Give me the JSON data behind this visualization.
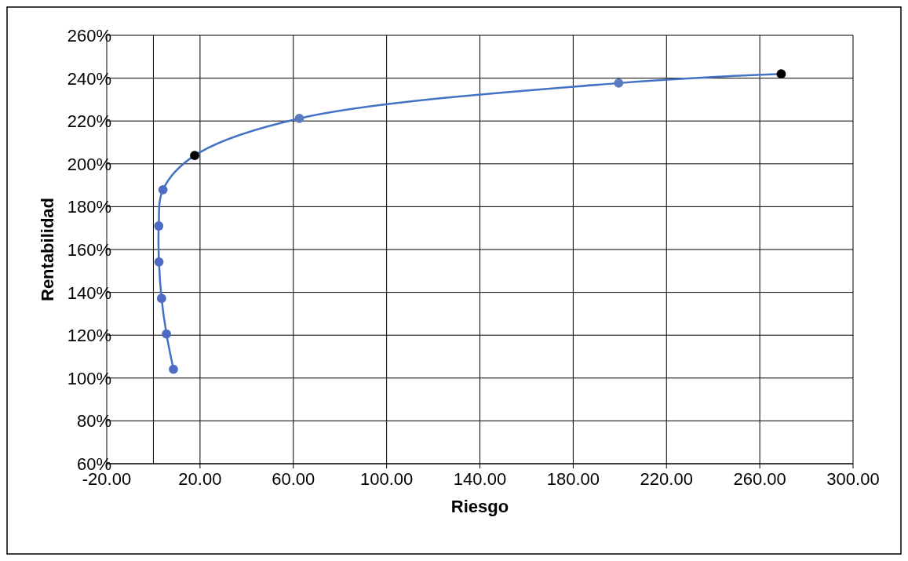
{
  "chart_data": {
    "type": "line",
    "xlabel": "Riesgo",
    "ylabel": "Rentabilidad",
    "x": [
      8.6,
      5.6,
      3.5,
      2.4,
      2.3,
      4.1,
      17.7,
      62.6,
      199.5,
      269.2
    ],
    "series": [
      {
        "color": "#4472c4",
        "colors": [
          "#4f6cc4",
          "#4f6cc4",
          "#4f6cc4",
          "#4f6cc4",
          "#4f6cc4",
          "#4f6cc4",
          "#000000",
          "#5a7bbf",
          "#5a7bbf",
          "#000000"
        ],
        "values": [
          104.1,
          120.6,
          137.2,
          154.2,
          171,
          187.9,
          203.9,
          221.2,
          237.7,
          242
        ]
      }
    ],
    "xlim": [
      -20,
      300
    ],
    "ylim": [
      60,
      260
    ],
    "xticks": [
      {
        "value": -20,
        "label": "-20.00"
      },
      {
        "value": 20,
        "label": "20.00"
      },
      {
        "value": 60,
        "label": "60.00"
      },
      {
        "value": 100,
        "label": "100.00"
      },
      {
        "value": 140,
        "label": "140.00"
      },
      {
        "value": 180,
        "label": "180.00"
      },
      {
        "value": 220,
        "label": "220.00"
      },
      {
        "value": 260,
        "label": "260.00"
      },
      {
        "value": 300,
        "label": "300.00"
      }
    ],
    "yticks": [
      {
        "value": 60,
        "label": "60%"
      },
      {
        "value": 80,
        "label": "80%"
      },
      {
        "value": 100,
        "label": "100%"
      },
      {
        "value": 120,
        "label": "120%"
      },
      {
        "value": 140,
        "label": "140%"
      },
      {
        "value": 160,
        "label": "160%"
      },
      {
        "value": 180,
        "label": "180%"
      },
      {
        "value": 200,
        "label": "200%"
      },
      {
        "value": 220,
        "label": "220%"
      },
      {
        "value": 240,
        "label": "240%"
      },
      {
        "value": 260,
        "label": "260%"
      }
    ],
    "grid": true,
    "marker": "circle",
    "line_style": "solid"
  }
}
